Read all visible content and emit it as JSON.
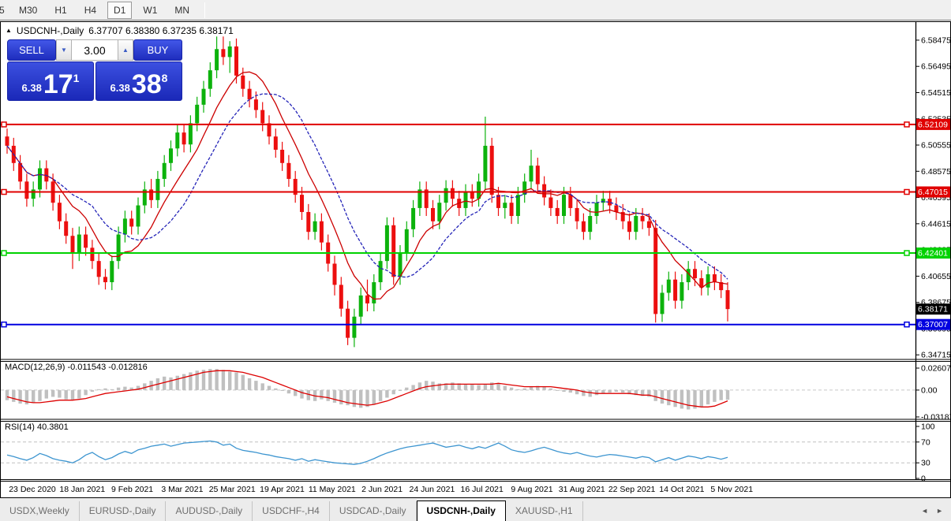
{
  "toolbar": {
    "timeframes": [
      "5",
      "M30",
      "H1",
      "H4",
      "D1",
      "W1",
      "MN"
    ],
    "active": "D1"
  },
  "chart": {
    "collapse_icon": "▲",
    "title": "USDCNH-,Daily",
    "ohlc_text": "6.37707 6.38380 6.37235 6.38171"
  },
  "trade_panel": {
    "sell_label": "SELL",
    "buy_label": "BUY",
    "volume": "3.00",
    "spinner_down_icon": "▼",
    "spinner_up_icon": "▲",
    "sell_price_small": "6.38",
    "sell_price_big": "17",
    "sell_price_sup": "1",
    "buy_price_small": "6.38",
    "buy_price_big": "38",
    "buy_price_sup": "8"
  },
  "indicators": {
    "macd_label": "MACD(12,26,9) -0.011543 -0.012816",
    "rsi_label": "RSI(14) 40.3801"
  },
  "tabs": {
    "items": [
      "USDX,Weekly",
      "EURUSD-,Daily",
      "AUDUSD-,Daily",
      "USDCHF-,H4",
      "USDCAD-,Daily",
      "USDCNH-,Daily",
      "XAUUSD-,H1"
    ],
    "active_index": 5,
    "scroll_left_icon": "◄",
    "scroll_right_icon": "►"
  },
  "chart_data": {
    "type": "candlestick+indicators",
    "symbol": "USDCNH-",
    "timeframe": "Daily",
    "colors": {
      "up": "#0cb20c",
      "down": "#ec0f0f",
      "hist": "#c0c0c0",
      "signal": "#dd0000",
      "ma_fast": "#cc0000",
      "ma_slow": "#2424b8",
      "rsi": "#3d95d0",
      "current_bg": "#000000"
    },
    "price_axis": {
      "min": 6.3437,
      "max": 6.5984,
      "ticks": [
        "6.58475",
        "6.56495",
        "6.54515",
        "6.52535",
        "6.50555",
        "6.48575",
        "6.46595",
        "6.44615",
        "6.42635",
        "6.40655",
        "6.38675",
        "6.36695",
        "6.34715"
      ]
    },
    "levels": [
      {
        "value": 6.52109,
        "label": "6.52109",
        "color": "#e00000"
      },
      {
        "value": 6.47015,
        "label": "6.47015",
        "color": "#e00000"
      },
      {
        "value": 6.42401,
        "label": "6.42401",
        "color": "#00d200"
      },
      {
        "value": 6.37007,
        "label": "6.37007",
        "color": "#0000e0"
      }
    ],
    "current_price": {
      "value": 6.38171,
      "label": "6.38171"
    },
    "moving_averages": [
      {
        "name": "fast",
        "period": 8,
        "dashed": false
      },
      {
        "name": "slow",
        "period": 14,
        "dashed": true
      }
    ],
    "x_labels": [
      "23 Dec 2020",
      "18 Jan 2021",
      "9 Feb 2021",
      "3 Mar 2021",
      "25 Mar 2021",
      "19 Apr 2021",
      "11 May 2021",
      "2 Jun 2021",
      "24 Jun 2021",
      "16 Jul 2021",
      "9 Aug 2021",
      "31 Aug 2021",
      "22 Sep 2021",
      "14 Oct 2021",
      "5 Nov 2021"
    ],
    "candles": [
      [
        6.512,
        6.518,
        6.499,
        6.505
      ],
      [
        6.505,
        6.511,
        6.486,
        6.492
      ],
      [
        6.492,
        6.498,
        6.472,
        6.478
      ],
      [
        6.478,
        6.484,
        6.459,
        6.465
      ],
      [
        6.465,
        6.478,
        6.459,
        6.472
      ],
      [
        6.472,
        6.494,
        6.466,
        6.488
      ],
      [
        6.488,
        6.494,
        6.472,
        6.478
      ],
      [
        6.478,
        6.484,
        6.456,
        6.462
      ],
      [
        6.462,
        6.468,
        6.442,
        6.448
      ],
      [
        6.448,
        6.454,
        6.431,
        6.437
      ],
      [
        6.437,
        6.443,
        6.412,
        6.424
      ],
      [
        6.424,
        6.444,
        6.418,
        6.438
      ],
      [
        6.438,
        6.444,
        6.422,
        6.428
      ],
      [
        6.428,
        6.434,
        6.412,
        6.418
      ],
      [
        6.418,
        6.424,
        6.4,
        6.406
      ],
      [
        6.406,
        6.412,
        6.3965,
        6.402
      ],
      [
        6.402,
        6.422,
        6.396,
        6.418
      ],
      [
        6.418,
        6.444,
        6.412,
        6.438
      ],
      [
        6.438,
        6.456,
        6.432,
        6.45
      ],
      [
        6.45,
        6.456,
        6.438,
        6.444
      ],
      [
        6.444,
        6.466,
        6.438,
        6.46
      ],
      [
        6.46,
        6.478,
        6.454,
        6.472
      ],
      [
        6.472,
        6.48,
        6.458,
        6.464
      ],
      [
        6.464,
        6.486,
        6.458,
        6.48
      ],
      [
        6.48,
        6.498,
        6.474,
        6.492
      ],
      [
        6.492,
        6.509,
        6.486,
        6.503
      ],
      [
        6.503,
        6.521,
        6.497,
        6.515
      ],
      [
        6.515,
        6.521,
        6.5,
        6.506
      ],
      [
        6.506,
        6.528,
        6.5,
        6.522
      ],
      [
        6.522,
        6.542,
        6.516,
        6.536
      ],
      [
        6.536,
        6.554,
        6.53,
        6.548
      ],
      [
        6.548,
        6.568,
        6.542,
        6.562
      ],
      [
        6.562,
        6.5875,
        6.556,
        6.578
      ],
      [
        6.578,
        6.5875,
        6.566,
        6.572
      ],
      [
        6.572,
        6.584,
        6.56,
        6.58
      ],
      [
        6.58,
        6.586,
        6.552,
        6.558
      ],
      [
        6.558,
        6.564,
        6.542,
        6.548
      ],
      [
        6.548,
        6.554,
        6.534,
        6.54
      ],
      [
        6.54,
        6.546,
        6.526,
        6.532
      ],
      [
        6.532,
        6.538,
        6.516,
        6.522
      ],
      [
        6.522,
        6.528,
        6.506,
        6.512
      ],
      [
        6.512,
        6.518,
        6.496,
        6.502
      ],
      [
        6.502,
        6.508,
        6.486,
        6.492
      ],
      [
        6.492,
        6.498,
        6.474,
        6.48
      ],
      [
        6.48,
        6.486,
        6.462,
        6.468
      ],
      [
        6.468,
        6.474,
        6.449,
        6.455
      ],
      [
        6.455,
        6.461,
        6.434,
        6.44
      ],
      [
        6.44,
        6.454,
        6.434,
        6.448
      ],
      [
        6.448,
        6.454,
        6.426,
        6.432
      ],
      [
        6.432,
        6.438,
        6.41,
        6.416
      ],
      [
        6.416,
        6.422,
        6.392,
        6.4
      ],
      [
        6.4,
        6.406,
        6.376,
        6.382
      ],
      [
        6.382,
        6.388,
        6.3545,
        6.36
      ],
      [
        6.36,
        6.382,
        6.353,
        6.376
      ],
      [
        6.376,
        6.398,
        6.37,
        6.392
      ],
      [
        6.392,
        6.404,
        6.38,
        6.386
      ],
      [
        6.386,
        6.408,
        6.38,
        6.402
      ],
      [
        6.402,
        6.424,
        6.396,
        6.418
      ],
      [
        6.418,
        6.451,
        6.412,
        6.445
      ],
      [
        6.445,
        6.451,
        6.4,
        6.406
      ],
      [
        6.406,
        6.43,
        6.4,
        6.424
      ],
      [
        6.424,
        6.448,
        6.418,
        6.442
      ],
      [
        6.442,
        6.464,
        6.436,
        6.458
      ],
      [
        6.458,
        6.478,
        6.452,
        6.472
      ],
      [
        6.472,
        6.478,
        6.452,
        6.458
      ],
      [
        6.458,
        6.464,
        6.442,
        6.448
      ],
      [
        6.448,
        6.468,
        6.442,
        6.462
      ],
      [
        6.462,
        6.479,
        6.456,
        6.473
      ],
      [
        6.473,
        6.479,
        6.459,
        6.465
      ],
      [
        6.465,
        6.471,
        6.452,
        6.458
      ],
      [
        6.458,
        6.476,
        6.452,
        6.47
      ],
      [
        6.47,
        6.476,
        6.459,
        6.465
      ],
      [
        6.465,
        6.484,
        6.459,
        6.478
      ],
      [
        6.478,
        6.527,
        6.472,
        6.505
      ],
      [
        6.505,
        6.511,
        6.462,
        6.468
      ],
      [
        6.468,
        6.474,
        6.452,
        6.458
      ],
      [
        6.458,
        6.468,
        6.45,
        6.462
      ],
      [
        6.462,
        6.468,
        6.446,
        6.452
      ],
      [
        6.452,
        6.474,
        6.446,
        6.468
      ],
      [
        6.468,
        6.484,
        6.462,
        6.478
      ],
      [
        6.478,
        6.502,
        6.472,
        6.49
      ],
      [
        6.49,
        6.496,
        6.47,
        6.476
      ],
      [
        6.476,
        6.482,
        6.46,
        6.466
      ],
      [
        6.466,
        6.472,
        6.452,
        6.458
      ],
      [
        6.458,
        6.464,
        6.446,
        6.452
      ],
      [
        6.452,
        6.474,
        6.446,
        6.468
      ],
      [
        6.468,
        6.474,
        6.452,
        6.458
      ],
      [
        6.458,
        6.464,
        6.442,
        6.448
      ],
      [
        6.448,
        6.454,
        6.434,
        6.44
      ],
      [
        6.44,
        6.458,
        6.434,
        6.452
      ],
      [
        6.452,
        6.468,
        6.446,
        6.462
      ],
      [
        6.462,
        6.471,
        6.456,
        6.465
      ],
      [
        6.465,
        6.471,
        6.454,
        6.46
      ],
      [
        6.46,
        6.466,
        6.449,
        6.455
      ],
      [
        6.455,
        6.461,
        6.442,
        6.448
      ],
      [
        6.448,
        6.454,
        6.434,
        6.44
      ],
      [
        6.44,
        6.458,
        6.434,
        6.452
      ],
      [
        6.452,
        6.458,
        6.442,
        6.448
      ],
      [
        6.448,
        6.454,
        6.437,
        6.443
      ],
      [
        6.443,
        6.449,
        6.3715,
        6.378
      ],
      [
        6.378,
        6.4,
        6.372,
        6.394
      ],
      [
        6.394,
        6.41,
        6.388,
        6.404
      ],
      [
        6.404,
        6.41,
        6.382,
        6.388
      ],
      [
        6.388,
        6.408,
        6.382,
        6.402
      ],
      [
        6.402,
        6.418,
        6.396,
        6.412
      ],
      [
        6.412,
        6.418,
        6.399,
        6.405
      ],
      [
        6.405,
        6.411,
        6.392,
        6.398
      ],
      [
        6.398,
        6.414,
        6.392,
        6.408
      ],
      [
        6.408,
        6.414,
        6.396,
        6.402
      ],
      [
        6.402,
        6.408,
        6.39,
        6.396
      ],
      [
        6.396,
        6.402,
        6.3724,
        6.3817
      ]
    ],
    "macd": {
      "params": "12,26,9",
      "current_main": -0.011543,
      "current_signal": -0.012816,
      "range": {
        "min": -0.0347,
        "max": 0.0345
      },
      "axis_ticks": [
        {
          "label": "0.02607",
          "value": 0.02607
        },
        {
          "label": "0.00",
          "value": 0
        },
        {
          "label": "-0.03187",
          "value": -0.03187
        }
      ],
      "main": [
        -0.012,
        -0.014,
        -0.016,
        -0.017,
        -0.015,
        -0.013,
        -0.01,
        -0.008,
        -0.009,
        -0.011,
        -0.012,
        -0.01,
        -0.006,
        -0.002,
        0.001,
        0.002,
        0.001,
        0.003,
        0.004,
        0.003,
        0.005,
        0.008,
        0.011,
        0.014,
        0.016,
        0.015,
        0.017,
        0.019,
        0.021,
        0.023,
        0.024,
        0.025,
        0.025,
        0.024,
        0.022,
        0.021,
        0.018,
        0.014,
        0.011,
        0.008,
        0.005,
        0.002,
        -0.001,
        -0.004,
        -0.007,
        -0.01,
        -0.012,
        -0.013,
        -0.011,
        -0.013,
        -0.015,
        -0.017,
        -0.018,
        -0.02,
        -0.021,
        -0.02,
        -0.017,
        -0.013,
        -0.009,
        -0.005,
        -0.001,
        0.003,
        0.006,
        0.009,
        0.011,
        0.01,
        0.008,
        0.008,
        0.009,
        0.008,
        0.007,
        0.007,
        0.006,
        0.007,
        0.009,
        0.008,
        0.005,
        0.003,
        0.001,
        0.002,
        0.004,
        0.005,
        0.004,
        0.002,
        0.0,
        -0.002,
        -0.003,
        -0.005,
        -0.007,
        -0.008,
        -0.006,
        -0.004,
        -0.003,
        -0.002,
        -0.003,
        -0.005,
        -0.006,
        -0.007,
        -0.008,
        -0.013,
        -0.016,
        -0.018,
        -0.02,
        -0.022,
        -0.023,
        -0.022,
        -0.02,
        -0.017,
        -0.014,
        -0.012,
        -0.0115
      ],
      "signal": [
        -0.008,
        -0.01,
        -0.012,
        -0.014,
        -0.015,
        -0.015,
        -0.014,
        -0.013,
        -0.012,
        -0.012,
        -0.012,
        -0.011,
        -0.01,
        -0.008,
        -0.006,
        -0.004,
        -0.003,
        -0.002,
        -0.001,
        0.0,
        0.001,
        0.003,
        0.005,
        0.007,
        0.009,
        0.011,
        0.013,
        0.015,
        0.017,
        0.019,
        0.021,
        0.022,
        0.023,
        0.023,
        0.023,
        0.022,
        0.021,
        0.019,
        0.017,
        0.015,
        0.012,
        0.009,
        0.006,
        0.003,
        0.0,
        -0.003,
        -0.005,
        -0.007,
        -0.008,
        -0.009,
        -0.011,
        -0.013,
        -0.015,
        -0.016,
        -0.017,
        -0.018,
        -0.017,
        -0.015,
        -0.013,
        -0.01,
        -0.007,
        -0.004,
        -0.001,
        0.002,
        0.004,
        0.005,
        0.006,
        0.007,
        0.007,
        0.007,
        0.007,
        0.007,
        0.007,
        0.007,
        0.007,
        0.008,
        0.007,
        0.006,
        0.005,
        0.004,
        0.004,
        0.004,
        0.004,
        0.004,
        0.003,
        0.002,
        0.001,
        0.0,
        -0.002,
        -0.003,
        -0.004,
        -0.004,
        -0.004,
        -0.004,
        -0.004,
        -0.004,
        -0.005,
        -0.006,
        -0.006,
        -0.008,
        -0.01,
        -0.012,
        -0.014,
        -0.016,
        -0.018,
        -0.019,
        -0.02,
        -0.02,
        -0.019,
        -0.016,
        -0.0128
      ]
    },
    "rsi": {
      "period": 14,
      "current": 40.3801,
      "range": [
        0,
        100
      ],
      "levels": [
        70,
        30
      ],
      "axis_ticks": [
        "100",
        "70",
        "30",
        "0"
      ],
      "values": [
        45,
        42,
        38,
        35,
        40,
        48,
        44,
        38,
        35,
        33,
        30,
        36,
        45,
        50,
        42,
        36,
        40,
        47,
        52,
        48,
        55,
        58,
        62,
        64,
        66,
        62,
        65,
        68,
        69,
        70,
        71,
        72,
        70,
        64,
        66,
        58,
        54,
        52,
        50,
        47,
        45,
        42,
        40,
        38,
        35,
        38,
        33,
        36,
        34,
        32,
        30,
        29,
        28,
        27,
        29,
        33,
        38,
        44,
        49,
        53,
        57,
        60,
        62,
        64,
        66,
        68,
        64,
        60,
        62,
        64,
        60,
        57,
        61,
        58,
        63,
        68,
        62,
        55,
        52,
        50,
        53,
        57,
        60,
        56,
        52,
        49,
        47,
        50,
        46,
        43,
        41,
        44,
        46,
        45,
        43,
        41,
        39,
        42,
        40,
        32,
        36,
        40,
        35,
        39,
        43,
        41,
        38,
        42,
        40,
        37,
        40.38
      ]
    }
  }
}
